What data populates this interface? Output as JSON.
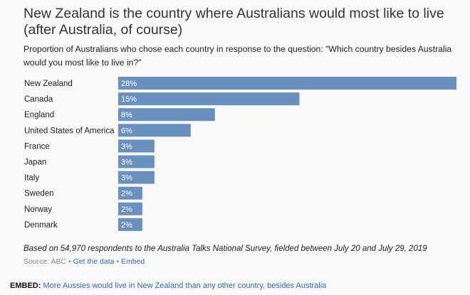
{
  "header": {
    "title": "New Zealand is the country where Australians would most like to live (after Australia, of course)",
    "subtitle": "Proportion of Australians who chose each country in response to the question: \"Which country besides Australia would you most like to live in?\""
  },
  "chart_data": {
    "type": "bar",
    "orientation": "horizontal",
    "categories": [
      "New Zealand",
      "Canada",
      "England",
      "United States of America",
      "France",
      "Japan",
      "Italy",
      "Sweden",
      "Norway",
      "Denmark"
    ],
    "values": [
      28,
      15,
      8,
      6,
      3,
      3,
      3,
      2,
      2,
      2
    ],
    "data_labels": [
      "28%",
      "15%",
      "8%",
      "6%",
      "3%",
      "3%",
      "3%",
      "2%",
      "2%",
      "2%"
    ],
    "unit": "%",
    "xlim": [
      0,
      28
    ],
    "grid": false,
    "bar_color": "#6a90c0"
  },
  "footer": {
    "note": "Based on 54,970 respondents to the Australia Talks National Survey, fielded between July 20 and July 29, 2019",
    "source": "Source: ABC",
    "separator": "•",
    "get_data": "Get the data",
    "embed": "Embed"
  },
  "embed_line": {
    "label": "EMBED:",
    "link": "More Aussies would live in New Zealand than any other country, besides Australia"
  },
  "colors": {
    "link": "#2a6ab5",
    "bar": "#6a90c0"
  }
}
